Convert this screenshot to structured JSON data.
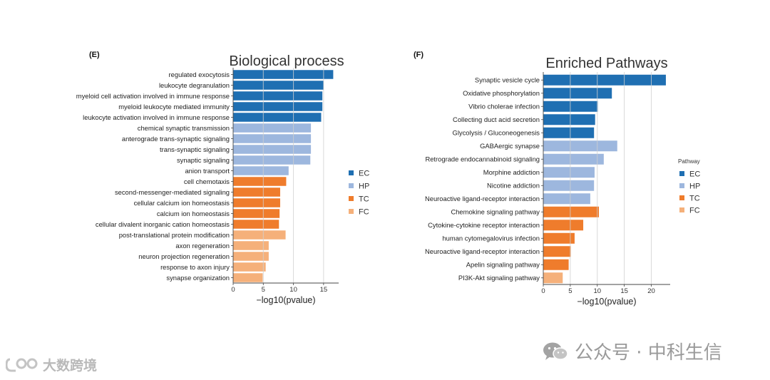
{
  "chart_data": [
    {
      "type": "bar",
      "orientation": "horizontal",
      "panel_label": "(E)",
      "title": "Biological process",
      "xlabel": "−log10(pvalue)",
      "xlim": [
        0,
        17.5
      ],
      "xticks": [
        0,
        5,
        10,
        15
      ],
      "grid": true,
      "legend_title": "",
      "legend_position": "right",
      "legend": [
        {
          "name": "EC",
          "color": "#1f6fb2"
        },
        {
          "name": "HP",
          "color": "#9db7de"
        },
        {
          "name": "TC",
          "color": "#ef7c2c"
        },
        {
          "name": "FC",
          "color": "#f5b07a"
        }
      ],
      "bars": [
        {
          "label": "regulated exocytosis",
          "value": 16.6,
          "group": "EC"
        },
        {
          "label": "leukocyte degranulation",
          "value": 15.0,
          "group": "EC"
        },
        {
          "label": "myeloid cell activation involved in immune response",
          "value": 14.8,
          "group": "EC"
        },
        {
          "label": "myeloid leukocyte mediated immunity",
          "value": 14.8,
          "group": "EC"
        },
        {
          "label": "leukocyte activation involved in immune response",
          "value": 14.6,
          "group": "EC"
        },
        {
          "label": "chemical synaptic transmission",
          "value": 12.9,
          "group": "HP"
        },
        {
          "label": "anterograde trans-synaptic signaling",
          "value": 12.9,
          "group": "HP"
        },
        {
          "label": "trans-synaptic signaling",
          "value": 12.9,
          "group": "HP"
        },
        {
          "label": "synaptic signaling",
          "value": 12.8,
          "group": "HP"
        },
        {
          "label": "anion transport",
          "value": 9.2,
          "group": "HP"
        },
        {
          "label": "cell chemotaxis",
          "value": 8.8,
          "group": "TC"
        },
        {
          "label": "second-messenger-mediated signaling",
          "value": 7.8,
          "group": "TC"
        },
        {
          "label": "cellular calcium ion homeostasis",
          "value": 7.8,
          "group": "TC"
        },
        {
          "label": "calcium ion homeostasis",
          "value": 7.7,
          "group": "TC"
        },
        {
          "label": "cellular divalent inorganic cation homeostasis",
          "value": 7.6,
          "group": "TC"
        },
        {
          "label": "post-translational protein modification",
          "value": 8.7,
          "group": "FC"
        },
        {
          "label": "axon regeneration",
          "value": 5.9,
          "group": "FC"
        },
        {
          "label": "neuron projection regeneration",
          "value": 5.9,
          "group": "FC"
        },
        {
          "label": "response to axon injury",
          "value": 5.4,
          "group": "FC"
        },
        {
          "label": "synapse organization",
          "value": 4.9,
          "group": "FC"
        }
      ]
    },
    {
      "type": "bar",
      "orientation": "horizontal",
      "panel_label": "(F)",
      "title": "Enriched Pathways",
      "xlabel": "−log10(pvalue)",
      "xlim": [
        0,
        23.5
      ],
      "xticks": [
        0,
        5,
        10,
        15,
        20
      ],
      "grid": true,
      "legend_title": "Pathway",
      "legend_position": "right",
      "legend": [
        {
          "name": "EC",
          "color": "#1f6fb2"
        },
        {
          "name": "HP",
          "color": "#9db7de"
        },
        {
          "name": "TC",
          "color": "#ef7c2c"
        },
        {
          "name": "FC",
          "color": "#f5b07a"
        }
      ],
      "bars": [
        {
          "label": "Synaptic vesicle cycle",
          "value": 22.7,
          "group": "EC"
        },
        {
          "label": "Oxidative phosphorylation",
          "value": 12.7,
          "group": "EC"
        },
        {
          "label": "Vibrio cholerae infection",
          "value": 10.1,
          "group": "EC"
        },
        {
          "label": "Collecting duct acid secretion",
          "value": 9.6,
          "group": "EC"
        },
        {
          "label": "Glycolysis / Gluconeogenesis",
          "value": 9.4,
          "group": "EC"
        },
        {
          "label": "GABAergic synapse",
          "value": 13.7,
          "group": "HP"
        },
        {
          "label": "Retrograde endocannabinoid signaling",
          "value": 11.2,
          "group": "HP"
        },
        {
          "label": "Morphine addiction",
          "value": 9.5,
          "group": "HP"
        },
        {
          "label": "Nicotine addiction",
          "value": 9.4,
          "group": "HP"
        },
        {
          "label": "Neuroactive ligand-receptor interaction",
          "value": 8.7,
          "group": "HP"
        },
        {
          "label": "Chemokine signaling pathway",
          "value": 10.3,
          "group": "TC"
        },
        {
          "label": "Cytokine-cytokine receptor interaction",
          "value": 7.4,
          "group": "TC"
        },
        {
          "label": "human cytomegalovirus infection",
          "value": 5.8,
          "group": "TC"
        },
        {
          "label": "Neuroactive ligand-receptor interaction",
          "value": 5.1,
          "group": "TC"
        },
        {
          "label": "Apelin signaling pathway",
          "value": 4.7,
          "group": "TC"
        },
        {
          "label": "PI3K-Akt signaling pathway",
          "value": 3.6,
          "group": "FC"
        }
      ]
    }
  ],
  "watermarks": {
    "right_text": "公众号 · 中科生信",
    "left_text": "大数跨境",
    "right_icon": "wechat-icon",
    "left_icon": "brand-logo-icon"
  }
}
